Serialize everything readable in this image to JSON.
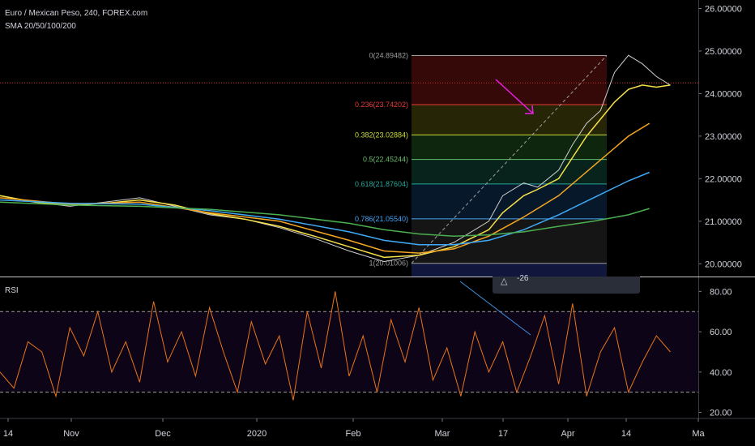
{
  "header": {
    "symbol": "Euro / Mexican Peso, 240, FOREX.com",
    "indicators": "SMA 20/50/100/200"
  },
  "rsi_label": "RSI",
  "tooltip": {
    "icon": "delta-icon",
    "value": "-26"
  },
  "colors": {
    "background": "#000000",
    "sma20": "#f7e14a",
    "sma50": "#f5a623",
    "sma100": "#3fa9f5",
    "sma200": "#4caf50",
    "rsi": "#e8751a",
    "price_line": "#d32f2f",
    "arrow": "#e91ee6",
    "trendline": "#3b8fdc"
  },
  "chart_data": [
    {
      "type": "line",
      "title": "Euro / Mexican Peso, 240, FOREX.com",
      "y_axis_ticks": [
        "26.00000",
        "25.00000",
        "24.00000",
        "23.00000",
        "22.00000",
        "21.00000",
        "20.00000"
      ],
      "ylim": [
        19.7,
        26.2
      ],
      "x_axis_ticks": [
        "14",
        "Nov",
        "Dec",
        "2020",
        "Feb",
        "Mar",
        "17",
        "Apr",
        "14",
        "Ma"
      ],
      "current_price_line": 24.25,
      "fibonacci": [
        {
          "level": "0",
          "price": "24.89482",
          "label": "0(24.89482)",
          "color": "#9e9e9e"
        },
        {
          "level": "0.236",
          "price": "23.74202",
          "label": "0.236(23.74202)",
          "color": "#e53935"
        },
        {
          "level": "0.382",
          "price": "23.02884",
          "label": "0.382(23.02884)",
          "color": "#cddc39"
        },
        {
          "level": "0.5",
          "price": "22.45244",
          "label": "0.5(22.45244)",
          "color": "#66bb6a"
        },
        {
          "level": "0.618",
          "price": "21.87604",
          "label": "0.618(21.87604)",
          "color": "#26a69a"
        },
        {
          "level": "0.786",
          "price": "21.05540",
          "label": "0.786(21.05540)",
          "color": "#42a5f5"
        },
        {
          "level": "1",
          "price": "20.01006",
          "label": "1(20.01006)",
          "color": "#9e9e9e"
        }
      ],
      "series": [
        {
          "x": [
            0,
            5,
            10,
            15,
            20,
            25,
            30,
            35,
            40,
            45,
            50,
            55,
            60,
            65,
            70,
            72,
            75,
            77,
            80,
            82,
            84,
            86,
            88,
            90,
            92,
            94,
            96
          ],
          "values": [
            21.6,
            21.45,
            21.35,
            21.45,
            21.55,
            21.35,
            21.15,
            21.05,
            20.85,
            20.6,
            20.3,
            20.05,
            20.2,
            20.5,
            21.0,
            21.6,
            21.9,
            21.8,
            22.2,
            22.8,
            23.3,
            23.6,
            24.5,
            24.9,
            24.7,
            24.4,
            24.2
          ]
        },
        {
          "x": [
            0,
            5,
            10,
            15,
            20,
            25,
            30,
            35,
            40,
            45,
            50,
            55,
            60,
            65,
            70,
            72,
            75,
            77,
            80,
            82,
            84,
            86,
            88,
            90,
            92,
            94,
            96
          ],
          "values": [
            21.6,
            21.45,
            21.38,
            21.42,
            21.5,
            21.38,
            21.18,
            21.05,
            20.88,
            20.65,
            20.4,
            20.15,
            20.2,
            20.4,
            20.8,
            21.2,
            21.6,
            21.75,
            22.0,
            22.5,
            23.0,
            23.4,
            23.8,
            24.1,
            24.2,
            24.15,
            24.2
          ]
        },
        {
          "x": [
            0,
            10,
            20,
            30,
            40,
            50,
            55,
            60,
            65,
            70,
            75,
            80,
            85,
            90,
            93
          ],
          "values": [
            21.55,
            21.4,
            21.45,
            21.2,
            21.0,
            20.55,
            20.3,
            20.25,
            20.35,
            20.65,
            21.1,
            21.6,
            22.3,
            23.0,
            23.3
          ]
        },
        {
          "x": [
            0,
            10,
            20,
            30,
            40,
            50,
            55,
            60,
            65,
            70,
            75,
            80,
            85,
            90,
            93
          ],
          "values": [
            21.5,
            21.42,
            21.4,
            21.25,
            21.05,
            20.75,
            20.55,
            20.45,
            20.45,
            20.55,
            20.8,
            21.15,
            21.55,
            21.95,
            22.15
          ]
        },
        {
          "x": [
            0,
            10,
            20,
            30,
            40,
            50,
            55,
            60,
            65,
            70,
            75,
            80,
            85,
            90,
            93
          ],
          "values": [
            21.45,
            21.38,
            21.35,
            21.28,
            21.15,
            20.95,
            20.8,
            20.7,
            20.65,
            20.68,
            20.75,
            20.88,
            21.0,
            21.15,
            21.3
          ]
        }
      ]
    },
    {
      "type": "line",
      "title": "RSI",
      "y_axis_ticks": [
        "80.00",
        "60.00",
        "40.00",
        "20.00"
      ],
      "ylim": [
        17,
        87
      ],
      "bands": [
        30,
        70
      ],
      "series": [
        {
          "x": [
            0,
            2,
            4,
            6,
            8,
            10,
            12,
            14,
            16,
            18,
            20,
            22,
            24,
            26,
            28,
            30,
            32,
            34,
            36,
            38,
            40,
            42,
            44,
            46,
            48,
            50,
            52,
            54,
            56,
            58,
            60,
            62,
            64,
            66,
            68,
            70,
            72,
            74,
            76,
            78,
            80,
            82,
            84,
            86,
            88,
            90,
            92,
            94,
            96
          ],
          "values": [
            40,
            32,
            55,
            50,
            28,
            62,
            48,
            70,
            40,
            55,
            35,
            75,
            45,
            60,
            38,
            72,
            50,
            30,
            65,
            44,
            58,
            26,
            70,
            42,
            80,
            38,
            58,
            30,
            66,
            45,
            72,
            36,
            52,
            28,
            60,
            40,
            55,
            30,
            48,
            68,
            34,
            74,
            28,
            50,
            62,
            30,
            45,
            58,
            50
          ]
        }
      ]
    }
  ]
}
